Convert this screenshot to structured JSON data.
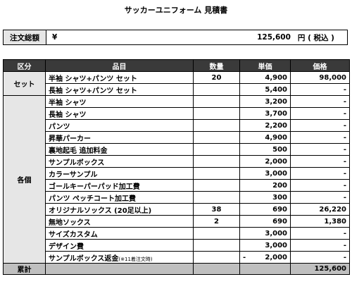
{
  "title": "サッカーユニフォーム 見積書",
  "total": {
    "label": "注文総額",
    "yen": "¥",
    "amount": "125,600",
    "suffix": "円 ( 税込 )"
  },
  "headers": {
    "category": "区分",
    "item": "品目",
    "qty": "数量",
    "unit": "単価",
    "price": "価格"
  },
  "categories": {
    "set": "セット",
    "individual": "各個"
  },
  "rows": [
    {
      "item": "半袖 シャツ+パンツ セット",
      "qty": "20",
      "unit": "4,900",
      "price": "98,000"
    },
    {
      "item": "長袖 シャツ+パンツ セット",
      "qty": "",
      "unit": "5,400",
      "price": "-"
    },
    {
      "item": "半袖 シャツ",
      "qty": "",
      "unit": "3,200",
      "price": "-"
    },
    {
      "item": "長袖 シャツ",
      "qty": "",
      "unit": "3,700",
      "price": "-"
    },
    {
      "item": "パンツ",
      "qty": "",
      "unit": "2,200",
      "price": "-"
    },
    {
      "item": "昇華パーカー",
      "qty": "",
      "unit": "4,900",
      "price": "-"
    },
    {
      "item": "裏地起毛 追加料金",
      "qty": "",
      "unit": "500",
      "price": "-"
    },
    {
      "item": "サンプルボックス",
      "qty": "",
      "unit": "2,000",
      "price": "-"
    },
    {
      "item": "カラーサンプル",
      "qty": "",
      "unit": "3,000",
      "price": "-"
    },
    {
      "item": "ゴールキーパーパッド加工費",
      "qty": "",
      "unit": "200",
      "price": "-"
    },
    {
      "item": "パンツ ペッチコート加工費",
      "qty": "",
      "unit": "300",
      "price": "-"
    },
    {
      "item": "オリジナルソックス (20足以上)",
      "qty": "38",
      "unit": "690",
      "price": "26,220"
    },
    {
      "item": "無地ソックス",
      "qty": "2",
      "unit": "690",
      "price": "1,380"
    },
    {
      "item": "サイズカスタム",
      "qty": "",
      "unit": "3,000",
      "price": "-"
    },
    {
      "item": "デザイン費",
      "qty": "",
      "unit": "3,000",
      "price": "-"
    },
    {
      "item": "サンプルボックス返金",
      "note": "(※11着注文時)",
      "qty": "",
      "unit_sign": "-",
      "unit": "2,000",
      "price": "-"
    }
  ],
  "sum": {
    "label": "累計",
    "amount": "125,600"
  }
}
